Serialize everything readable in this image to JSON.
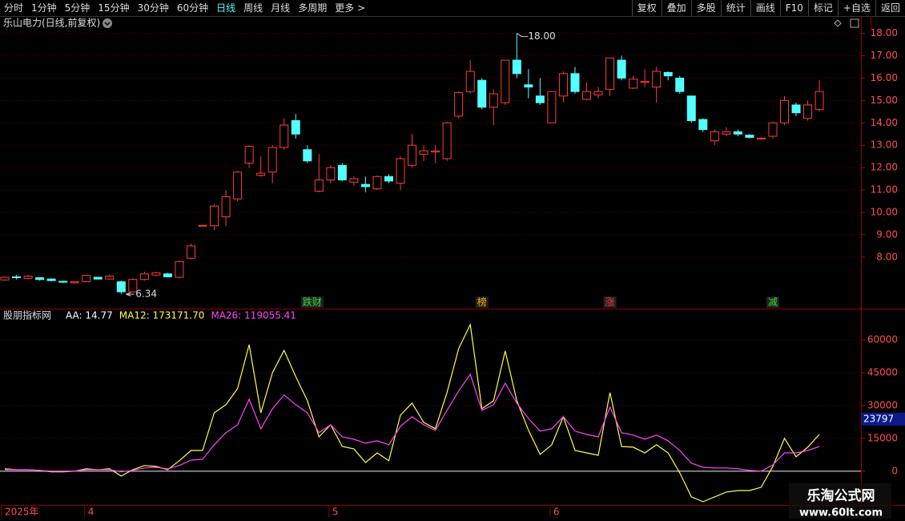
{
  "toolbar": {
    "left": [
      "分时",
      "1分钟",
      "5分钟",
      "15分钟",
      "30分钟",
      "60分钟",
      "日线",
      "周线",
      "月线",
      "多周期",
      "更多 >"
    ],
    "right": [
      "复权",
      "叠加",
      "多股",
      "统计",
      "画线",
      "F10",
      "标记",
      "+自选",
      "返回"
    ],
    "active_index": 6
  },
  "chart_data": [
    {
      "type": "candlestick",
      "title": "乐山电力(日线,前复权)",
      "up_color": "#ff3c3c",
      "down_color": "#54ffff",
      "open": [
        6.98,
        7.12,
        7.05,
        7.08,
        7.02,
        6.92,
        6.85,
        6.9,
        7.1,
        7.02,
        6.9,
        6.45,
        7.0,
        7.2,
        7.25,
        7.1,
        7.95,
        9.4,
        9.4,
        9.8,
        10.6,
        12.2,
        11.65,
        11.8,
        12.9,
        14.1,
        12.8,
        10.95,
        11.45,
        12.1,
        11.35,
        11.25,
        11.05,
        11.6,
        11.3,
        12.1,
        12.6,
        12.7,
        12.4,
        14.3,
        15.4,
        15.9,
        14.7,
        14.9,
        16.8,
        15.7,
        15.2,
        14.0,
        15.2,
        16.2,
        15.05,
        15.25,
        15.5,
        16.8,
        15.55,
        15.8,
        15.6,
        16.25,
        16.0,
        15.2,
        14.15,
        13.2,
        13.5,
        13.6,
        13.45,
        13.28,
        13.4,
        14.0,
        14.8,
        14.2,
        14.6
      ],
      "high": [
        7.12,
        7.2,
        7.2,
        7.1,
        7.05,
        6.95,
        6.92,
        7.2,
        7.12,
        7.2,
        6.95,
        7.05,
        7.35,
        7.35,
        7.3,
        7.85,
        8.6,
        9.43,
        10.35,
        11.0,
        11.85,
        13.0,
        12.5,
        13.0,
        14.2,
        14.4,
        13.0,
        12.6,
        12.1,
        12.2,
        11.6,
        11.6,
        11.65,
        11.7,
        12.5,
        13.5,
        13.0,
        13.0,
        14.05,
        15.4,
        16.8,
        16.0,
        15.5,
        16.8,
        18.0,
        16.4,
        16.0,
        15.4,
        16.3,
        16.5,
        15.8,
        15.6,
        16.9,
        17.0,
        16.1,
        16.4,
        16.5,
        16.3,
        16.1,
        15.2,
        14.2,
        13.7,
        13.8,
        13.7,
        13.5,
        13.35,
        14.05,
        15.2,
        14.9,
        15.0,
        15.9
      ],
      "low": [
        6.95,
        7.0,
        7.0,
        6.95,
        6.92,
        6.85,
        6.82,
        6.88,
        7.0,
        7.0,
        6.34,
        6.4,
        6.95,
        7.15,
        7.1,
        7.05,
        7.9,
        9.38,
        9.2,
        9.4,
        10.5,
        12.0,
        11.6,
        11.3,
        12.8,
        13.3,
        12.2,
        10.9,
        11.3,
        11.4,
        11.2,
        10.9,
        11.0,
        11.3,
        11.0,
        12.0,
        12.3,
        12.2,
        12.3,
        14.2,
        15.3,
        14.6,
        13.9,
        14.8,
        16.0,
        15.1,
        14.8,
        14.0,
        14.9,
        15.3,
        15.0,
        15.1,
        15.2,
        15.9,
        15.5,
        15.6,
        14.9,
        15.9,
        15.3,
        14.0,
        13.6,
        13.0,
        13.4,
        13.4,
        13.3,
        13.25,
        13.3,
        13.9,
        14.3,
        14.1,
        14.5
      ],
      "close": [
        7.1,
        7.08,
        7.15,
        7.0,
        6.95,
        6.88,
        6.9,
        7.18,
        7.02,
        7.15,
        6.45,
        7.0,
        7.25,
        7.3,
        7.12,
        7.8,
        8.5,
        9.42,
        10.28,
        10.7,
        11.8,
        12.95,
        11.75,
        12.9,
        13.9,
        13.5,
        12.3,
        11.45,
        12.0,
        11.45,
        11.5,
        11.15,
        11.6,
        11.4,
        12.4,
        13.0,
        12.75,
        12.75,
        14.0,
        15.35,
        16.3,
        14.7,
        15.3,
        16.8,
        16.2,
        15.6,
        14.9,
        15.4,
        16.2,
        15.4,
        15.4,
        15.4,
        16.9,
        16.0,
        15.95,
        15.85,
        16.3,
        16.1,
        15.4,
        14.1,
        13.7,
        13.6,
        13.6,
        13.5,
        13.35,
        13.32,
        14.0,
        15.0,
        14.45,
        14.8,
        15.4
      ],
      "max_label": "18.00",
      "min_label": "6.34",
      "ylim": [
        5.7,
        18.2
      ],
      "yticks": [
        {
          "value": 8,
          "label": "8.00"
        },
        {
          "value": 9,
          "label": "9.00"
        },
        {
          "value": 10,
          "label": "10.00"
        },
        {
          "value": 11,
          "label": "11.00"
        },
        {
          "value": 12,
          "label": "12.00"
        },
        {
          "value": 13,
          "label": "13.00"
        },
        {
          "value": 14,
          "label": "14.00"
        },
        {
          "value": 15,
          "label": "15.00"
        },
        {
          "value": 16,
          "label": "16.00"
        },
        {
          "value": 17,
          "label": "17.00"
        },
        {
          "value": 18,
          "label": "18.00"
        }
      ],
      "grid": true,
      "signals": [
        {
          "label": "跌财",
          "color": "#33dd33"
        },
        {
          "label": "榜",
          "color": "#ffaa00"
        },
        {
          "label": "涨",
          "color": "#ff3333"
        },
        {
          "label": "减",
          "color": "#33dd33"
        }
      ]
    },
    {
      "type": "line",
      "title": "股朋指标网",
      "legend": [
        {
          "label": "AA: 14.77",
          "color": "#ffffff"
        },
        {
          "label": "MA12: 173171.70",
          "color": "#ffff44"
        },
        {
          "label": "MA26: 119055.41",
          "color": "#ff44ff"
        }
      ],
      "series": [
        {
          "color": "#ffff44",
          "values": [
            1100,
            700,
            700,
            400,
            -300,
            -300,
            0,
            1100,
            700,
            1100,
            -2200,
            700,
            2600,
            2200,
            700,
            4800,
            9500,
            9500,
            26700,
            30400,
            37700,
            57800,
            26700,
            45000,
            55200,
            43200,
            32200,
            15700,
            21200,
            11300,
            10200,
            4000,
            8400,
            4800,
            25600,
            31100,
            22300,
            19400,
            35900,
            56000,
            67000,
            28500,
            32200,
            54900,
            32200,
            18700,
            7700,
            12100,
            24900,
            9500,
            8400,
            7300,
            35900,
            11300,
            11000,
            8400,
            12100,
            8400,
            -700,
            -11700,
            -13900,
            -11700,
            -9500,
            -8800,
            -8800,
            -7300,
            2200,
            15000,
            6600,
            11000,
            16800
          ]
        },
        {
          "color": "#ff44ff",
          "values": [
            700,
            700,
            700,
            400,
            0,
            0,
            0,
            700,
            700,
            700,
            -300,
            400,
            1500,
            1800,
            1100,
            2600,
            5100,
            5500,
            12100,
            17600,
            21200,
            32900,
            19400,
            28500,
            34800,
            30400,
            26700,
            17600,
            21200,
            15700,
            14600,
            12800,
            13900,
            12100,
            20500,
            24900,
            21200,
            18700,
            27800,
            36600,
            44300,
            27800,
            30400,
            40200,
            31100,
            24100,
            18300,
            19400,
            24900,
            18300,
            16800,
            15700,
            29300,
            17600,
            16500,
            14600,
            16500,
            13900,
            9500,
            3700,
            1800,
            1500,
            1500,
            1100,
            400,
            0,
            2900,
            8400,
            8400,
            9500,
            11300
          ]
        }
      ],
      "cursor_value": 23797,
      "ylim": [
        -15400,
        73900
      ],
      "yticks": [
        0,
        15000,
        30000,
        45000,
        60000
      ],
      "grid": true
    }
  ],
  "x_labels": [
    "2025年",
    "4",
    "5",
    "6"
  ],
  "watermark": {
    "title": "乐淘公式网",
    "url": "www.60lt.com"
  }
}
